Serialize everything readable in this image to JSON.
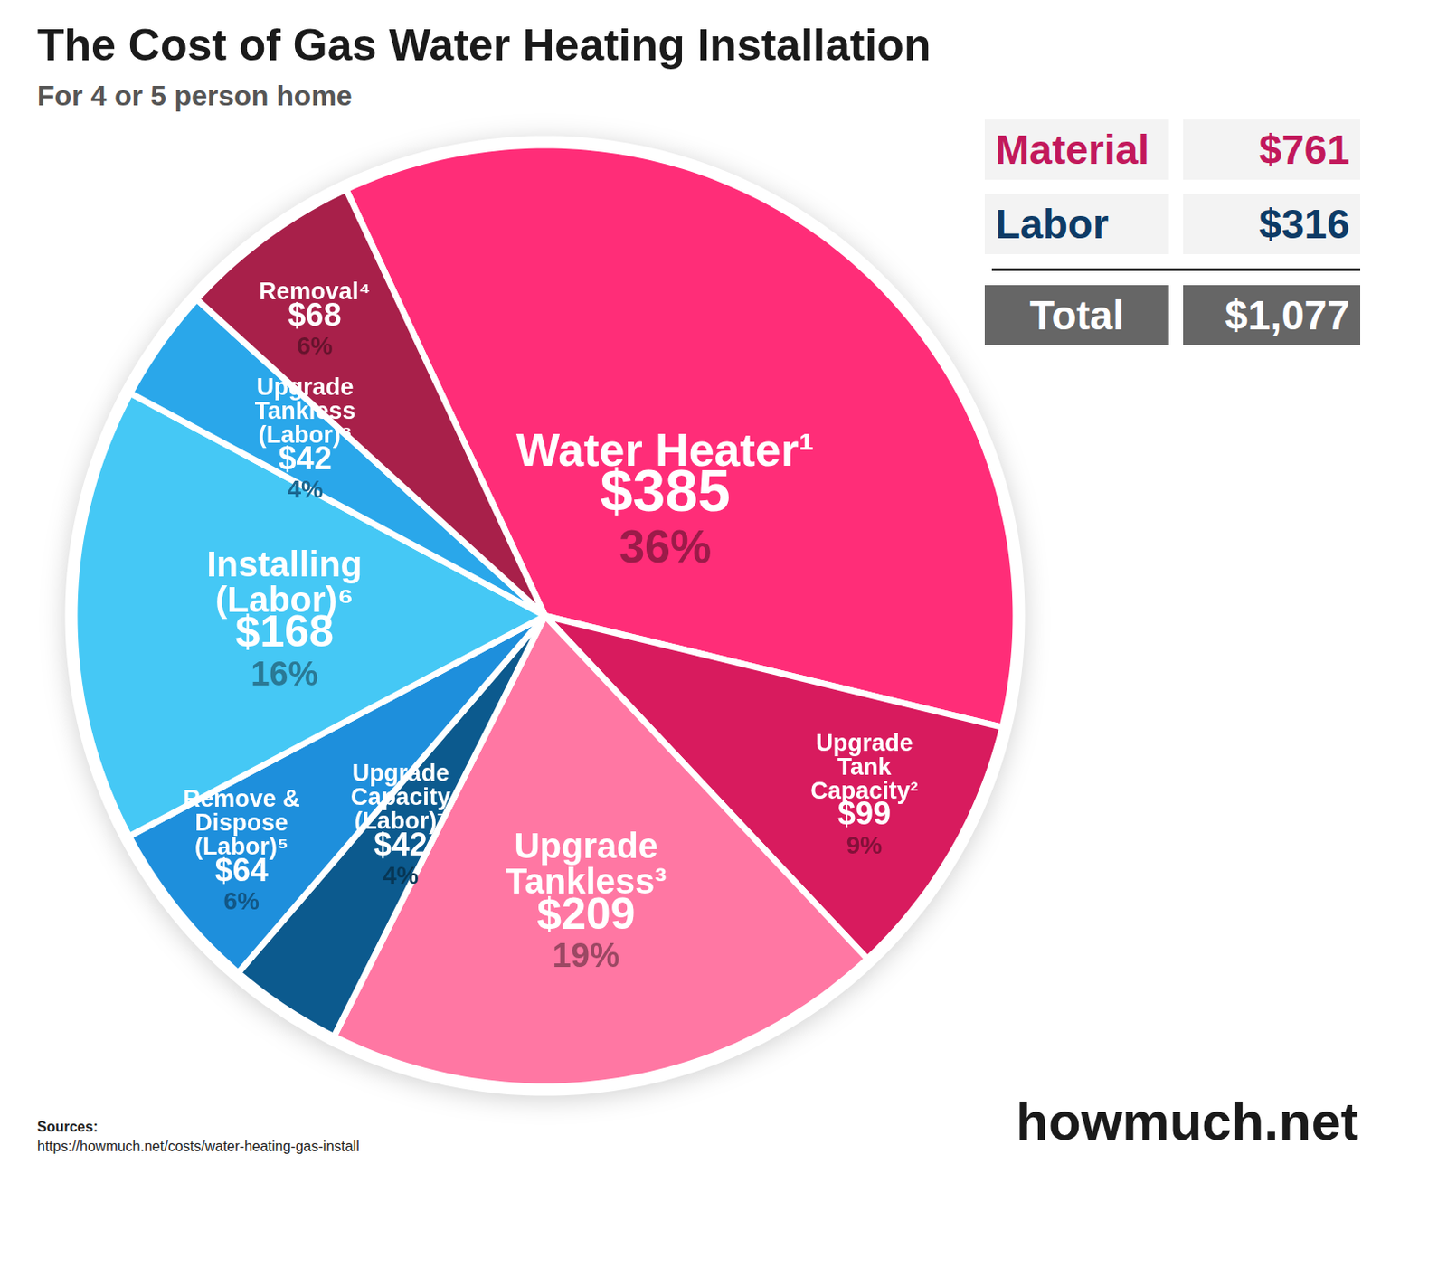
{
  "chart_data": {
    "type": "pie",
    "title": "The Cost of Gas Water Heating Installation",
    "subtitle": "For 4 or 5 person home",
    "categories": [
      "Water Heater¹",
      "Upgrade Tank Capacity²",
      "Upgrade Tankless³",
      "Upgrade Capacity (Labor)⁷",
      "Remove & Dispose (Labor)⁵",
      "Installing (Labor)⁶",
      "Upgrade Tankless (Labor)⁸",
      "Removal⁴"
    ],
    "values": [
      385,
      99,
      209,
      42,
      64,
      168,
      42,
      68
    ],
    "value_labels": [
      "$385",
      "$99",
      "$209",
      "$42",
      "$64",
      "$168",
      "$42",
      "$68"
    ],
    "shares": [
      36,
      9,
      19,
      4,
      6,
      16,
      4,
      6
    ],
    "share_labels": [
      "36%",
      "9%",
      "19%",
      "4%",
      "6%",
      "16%",
      "4%",
      "6%"
    ],
    "colors": [
      "#ff2d78",
      "#d81b5e",
      "#ff77a3",
      "#0c5a8e",
      "#1e8fdc",
      "#45c8f5",
      "#2aa7ea",
      "#a8204a"
    ],
    "data_labels": true,
    "summary": [
      {
        "label": "Material",
        "value": 761,
        "value_label": "$761",
        "color": "#c2185b"
      },
      {
        "label": "Labor",
        "value": 316,
        "value_label": "$316",
        "color": "#0d3b66"
      },
      {
        "label": "Total",
        "value": 1077,
        "value_label": "$1,077",
        "color": "#ffffff"
      }
    ],
    "source_label": "Sources:",
    "source": "https://howmuch.net/costs/water-heating-gas-install",
    "brand": "howmuch.net"
  }
}
